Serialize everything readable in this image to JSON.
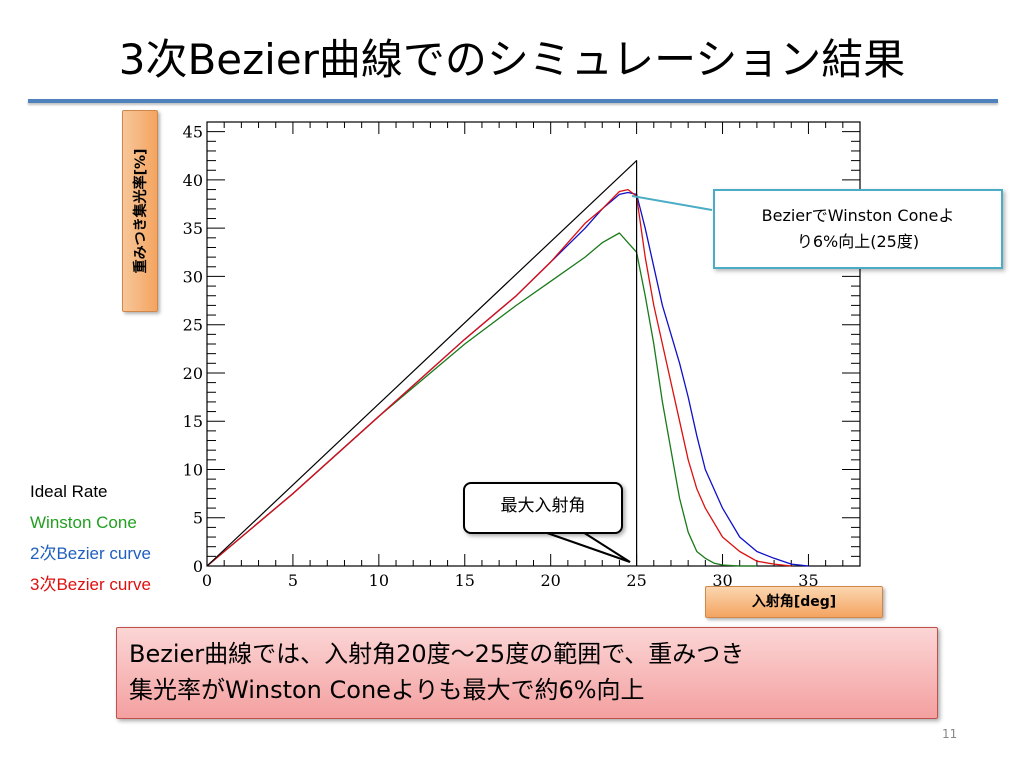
{
  "slide": {
    "title": "3次Bezier曲線でのシミュレーション結果",
    "page_number": "11",
    "conclusion_line1": "Bezier曲線では、入射角20度～25度の範囲で、重みつき",
    "conclusion_line2": "集光率がWinston Coneよりも最大で約6%向上",
    "callout_line1": "BezierでWinston Coneよ",
    "callout_line2": "り6%向上(25度)",
    "max_angle_label": "最大入射角"
  },
  "colors": {
    "ideal": "#000000",
    "winston": "#1a7a1a",
    "bezier2": "#1010c8",
    "bezier3": "#dd1010",
    "title_rule": "#4f81bd"
  },
  "chart_data": {
    "type": "line",
    "xlabel": "入射角[deg]",
    "ylabel": "重みつき集光率[%]",
    "xlim": [
      0,
      38
    ],
    "ylim": [
      0,
      46
    ],
    "x_ticks": [
      0,
      5,
      10,
      15,
      20,
      25,
      30,
      35
    ],
    "y_ticks": [
      0,
      5,
      10,
      15,
      20,
      25,
      30,
      35,
      40,
      45
    ],
    "grid": false,
    "legend_position": "left",
    "series": [
      {
        "name": "Ideal Rate",
        "color_key": "ideal",
        "x": [
          0,
          25,
          25
        ],
        "y": [
          0,
          42,
          0
        ]
      },
      {
        "name": "Winston Cone",
        "color_key": "winston",
        "x": [
          0,
          5,
          10,
          15,
          18,
          20,
          22,
          23,
          24,
          24.5,
          25,
          25.5,
          26,
          26.5,
          27,
          27.5,
          28,
          28.5,
          29,
          29.5,
          30,
          31,
          32
        ],
        "y": [
          0,
          7.5,
          15.5,
          23,
          27,
          29.5,
          32,
          33.5,
          34.5,
          33.5,
          32.5,
          28,
          23,
          17,
          12,
          7,
          3.5,
          1.5,
          0.8,
          0.3,
          0.1,
          0,
          0
        ]
      },
      {
        "name": "2次Bezier curve",
        "color_key": "bezier2",
        "x": [
          0,
          5,
          10,
          15,
          18,
          20,
          22,
          23,
          24,
          24.5,
          25,
          25.5,
          26,
          26.5,
          27,
          27.5,
          28,
          28.5,
          29,
          30,
          31,
          32,
          33,
          34,
          35
        ],
        "y": [
          0,
          7.5,
          15.5,
          23.5,
          28,
          31.5,
          35,
          37,
          38.5,
          38.7,
          38.5,
          35,
          31,
          27,
          24,
          21,
          17.5,
          13.5,
          10,
          6,
          3,
          1.5,
          0.8,
          0.2,
          0
        ]
      },
      {
        "name": "3次Bezier curve",
        "color_key": "bezier3",
        "x": [
          0,
          5,
          10,
          15,
          18,
          20,
          22,
          23,
          24,
          24.5,
          25,
          25.5,
          26,
          26.5,
          27,
          27.5,
          28,
          28.5,
          29,
          30,
          31,
          32,
          33,
          34
        ],
        "y": [
          0,
          7.5,
          15.5,
          23.5,
          28,
          31.5,
          35.5,
          37,
          38.8,
          39,
          38.3,
          32,
          27,
          23,
          19,
          15,
          11,
          8,
          6,
          3,
          1.5,
          0.5,
          0.2,
          0
        ]
      }
    ]
  }
}
